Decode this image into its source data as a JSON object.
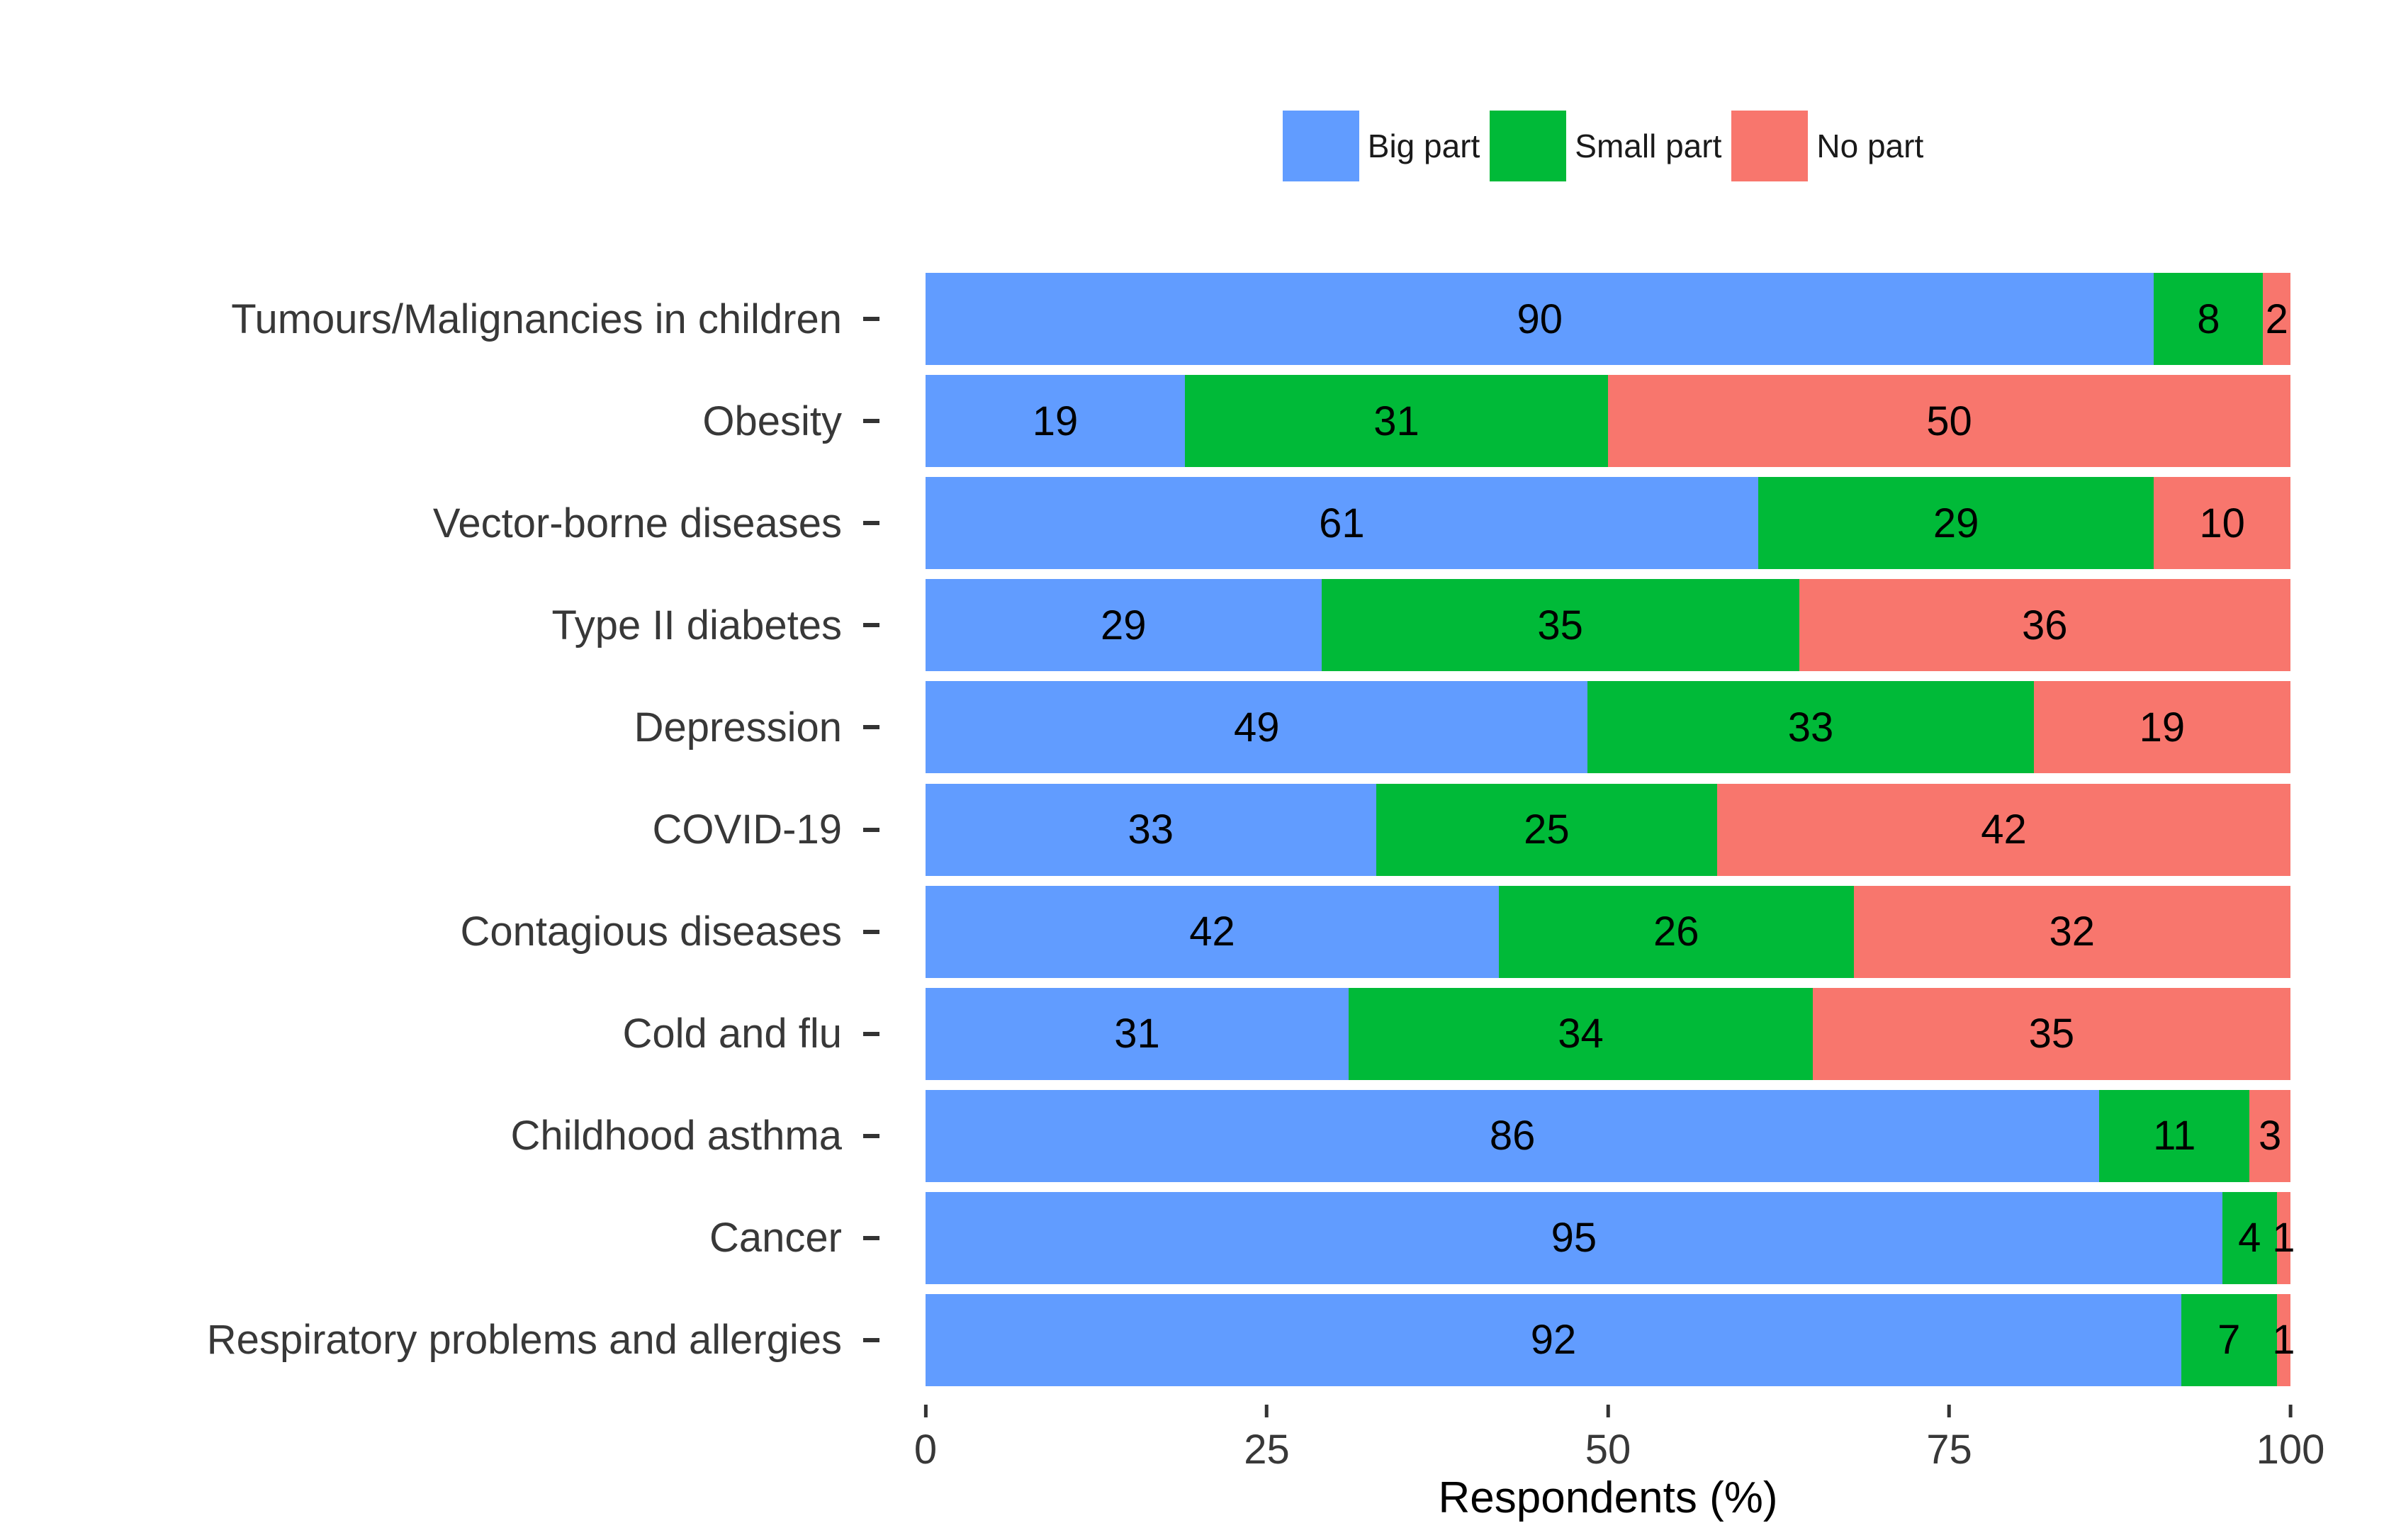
{
  "chart_data": {
    "type": "bar",
    "stacked": true,
    "orientation": "horizontal",
    "title": "",
    "xlabel": "Respondents (%)",
    "ylabel": "",
    "xlim": [
      0,
      100
    ],
    "x_ticks": [
      0,
      25,
      50,
      75,
      100
    ],
    "grid": false,
    "legend_position": "top",
    "categories": [
      "Tumours/Malignancies in children",
      "Obesity",
      "Vector-borne diseases",
      "Type II diabetes",
      "Depression",
      "COVID-19",
      "Contagious diseases",
      "Cold and flu",
      "Childhood asthma",
      "Cancer",
      "Respiratory problems and allergies"
    ],
    "series": [
      {
        "name": "Big part",
        "color": "#619CFF",
        "values": [
          90,
          19,
          61,
          29,
          49,
          33,
          42,
          31,
          86,
          95,
          92
        ]
      },
      {
        "name": "Small part",
        "color": "#00BA38",
        "values": [
          8,
          31,
          29,
          35,
          33,
          25,
          26,
          34,
          11,
          4,
          7
        ]
      },
      {
        "name": "No part",
        "color": "#F8766D",
        "values": [
          2,
          50,
          10,
          36,
          19,
          42,
          32,
          35,
          3,
          1,
          1
        ]
      }
    ]
  },
  "colors": {
    "big_part": "#619CFF",
    "small_part": "#00BA38",
    "no_part": "#F8766D",
    "axis_text": "#383838",
    "tick_mark": "#333333",
    "background": "#ffffff"
  }
}
